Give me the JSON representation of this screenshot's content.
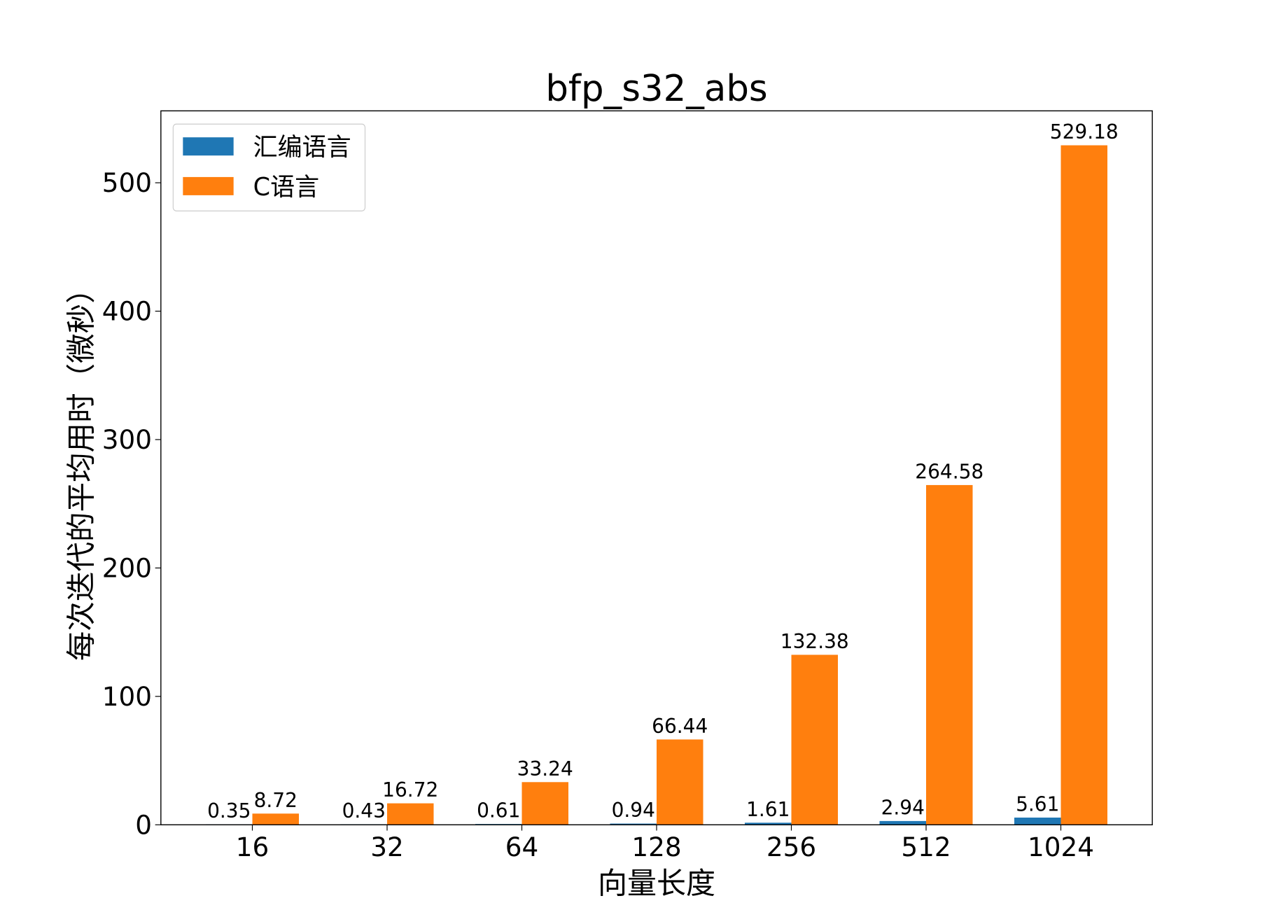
{
  "chart_data": {
    "type": "bar",
    "title": "bfp_s32_abs",
    "xlabel": "向量长度",
    "ylabel": "每次迭代的平均用时（微秒）",
    "categories": [
      "16",
      "32",
      "64",
      "128",
      "256",
      "512",
      "1024"
    ],
    "series": [
      {
        "name": "汇编语言",
        "color": "#1f77b4",
        "values": [
          0.35,
          0.43,
          0.61,
          0.94,
          1.61,
          2.94,
          5.61
        ],
        "labels": [
          "0.35",
          "0.43",
          "0.61",
          "0.94",
          "1.61",
          "2.94",
          "5.61"
        ]
      },
      {
        "name": "C语言",
        "color": "#ff7f0e",
        "values": [
          8.72,
          16.72,
          33.24,
          66.44,
          132.38,
          264.58,
          529.18
        ],
        "labels": [
          "8.72",
          "16.72",
          "33.24",
          "66.44",
          "132.38",
          "264.58",
          "529.18"
        ]
      }
    ],
    "yticks": [
      "0",
      "100",
      "200",
      "300",
      "400",
      "500"
    ],
    "ylim": [
      0,
      556
    ],
    "grid": false,
    "legend": "top-left"
  }
}
